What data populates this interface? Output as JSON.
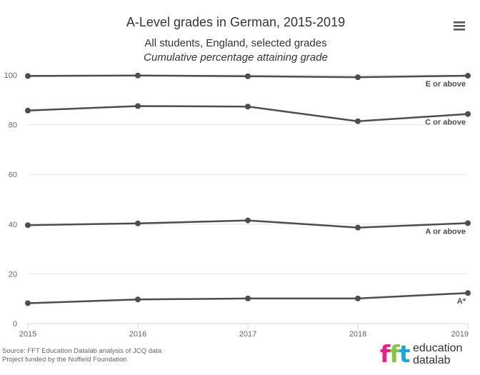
{
  "chart_data": {
    "type": "line",
    "title": "A-Level grades in German, 2015-2019",
    "subtitle_lines": [
      "All students, England, selected grades",
      "Cumulative percentage attaining grade"
    ],
    "x": [
      "2015",
      "2016",
      "2017",
      "2018",
      "2019"
    ],
    "ylim": [
      0,
      100
    ],
    "yticks": [
      "0",
      "20",
      "40",
      "60",
      "80",
      "100"
    ],
    "grid": true,
    "series": [
      {
        "name": "E or above",
        "values": [
          99.6,
          99.8,
          99.5,
          99.1,
          99.7
        ]
      },
      {
        "name": "C or above",
        "values": [
          85.7,
          87.5,
          87.3,
          81.4,
          84.3
        ]
      },
      {
        "name": "A or above",
        "values": [
          39.6,
          40.3,
          41.5,
          38.6,
          40.4
        ]
      },
      {
        "name": "A*",
        "values": [
          8.2,
          9.7,
          10.1,
          10.1,
          12.3
        ]
      }
    ],
    "series_color": "#4d4d4d"
  },
  "menu": {
    "icon": "hamburger-menu-icon"
  },
  "footer": {
    "source": "Source: FFT Education Datalab analysis of JCQ data",
    "funding": "Project funded by the Nuffield Foundation"
  },
  "logo": {
    "mark_f1": "f",
    "mark_f2": "f",
    "mark_t": "t",
    "line1": "education",
    "line2": "datalab",
    "colors": {
      "f1": "#e91e8c",
      "f2": "#8cc63f",
      "t": "#1fa6d8"
    }
  }
}
